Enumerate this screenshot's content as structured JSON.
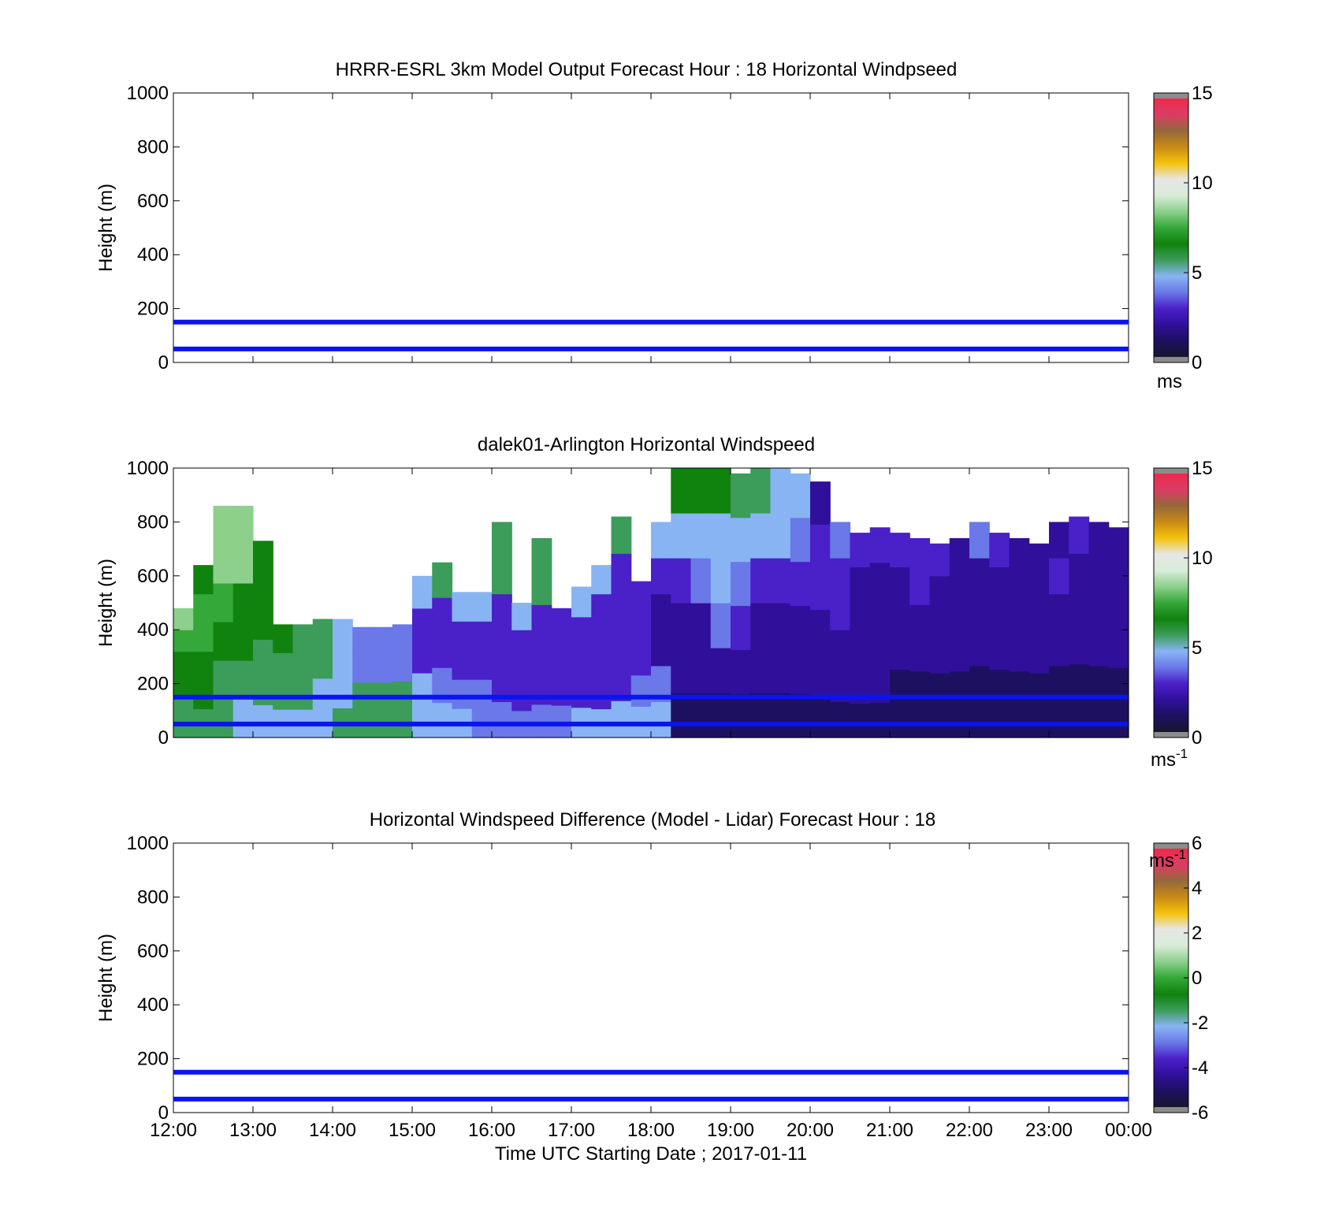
{
  "colors": {
    "ref_line": "#0a14f0",
    "missing": "#8c8c8c",
    "speed_scale": [
      "#16162e",
      "#1e1060",
      "#30109a",
      "#4a20c8",
      "#6a78e8",
      "#88b4f4",
      "#3c9c5a",
      "#10820e",
      "#34a838",
      "#8cd08c",
      "#d8ecd8",
      "#e6e6e6",
      "#f4c20c",
      "#c88a14",
      "#94683c",
      "#dc3c64",
      "#ee2a4a"
    ],
    "diff_scale": [
      "#16162e",
      "#1e1060",
      "#30109a",
      "#4a20c8",
      "#6a78e8",
      "#88b4f4",
      "#3c9c5a",
      "#10820e",
      "#34a838",
      "#8cd08c",
      "#d8ecd8",
      "#e6e6e6",
      "#f4c20c",
      "#c88a14",
      "#94683c",
      "#dc3c64",
      "#ee2a4a"
    ]
  },
  "chart_data": [
    {
      "id": "model",
      "type": "heatmap",
      "title": "HRRR-ESRL 3km Model Output   Forecast Hour : 18 Horizontal Windpseed",
      "ylabel": "Height (m)",
      "ylim": [
        0,
        1000
      ],
      "yticks": [
        "0",
        "200",
        "400",
        "600",
        "800",
        "1000"
      ],
      "ytick_values": [
        0,
        200,
        400,
        600,
        800,
        1000
      ],
      "x_range": [
        "12:00",
        "00:00"
      ],
      "reference_lines_m": [
        50,
        150
      ],
      "colorbar": {
        "range": [
          0,
          15
        ],
        "ticks": [
          "0",
          "5",
          "10",
          "15"
        ],
        "tick_values": [
          0,
          5,
          10,
          15
        ],
        "unit_text": "ms",
        "unit_sup": ""
      },
      "cells": []
    },
    {
      "id": "lidar",
      "type": "heatmap",
      "title": "dalek01-Arlington  Horizontal Windspeed",
      "ylabel": "Height (m)",
      "ylim": [
        0,
        1000
      ],
      "yticks": [
        "0",
        "200",
        "400",
        "600",
        "800",
        "1000"
      ],
      "ytick_values": [
        0,
        200,
        400,
        600,
        800,
        1000
      ],
      "x_range": [
        "12:00",
        "00:00"
      ],
      "reference_lines_m": [
        50,
        150
      ],
      "colorbar": {
        "range": [
          0,
          15
        ],
        "ticks": [
          "0",
          "5",
          "10",
          "15"
        ],
        "tick_values": [
          0,
          5,
          10,
          15
        ],
        "unit_text": "ms",
        "unit_sup": "-1"
      },
      "time_columns_hours_after_start": [
        0,
        0.25,
        0.5,
        0.75,
        1.0,
        1.25,
        1.5,
        1.75,
        2.0,
        2.25,
        2.5,
        2.75,
        3.0,
        3.25,
        3.5,
        3.75,
        4.0,
        4.25,
        4.5,
        4.75,
        5.0,
        5.25,
        5.5,
        5.75,
        6.0,
        6.25,
        6.5,
        6.75,
        7.0,
        7.25,
        7.5,
        7.75,
        8.0,
        8.25,
        8.5,
        8.75,
        9.0,
        9.25,
        9.5,
        9.75,
        10.0,
        10.25,
        10.5,
        10.75,
        11.0,
        11.25,
        11.5,
        11.75
      ],
      "column_profiles": [
        {
          "top": 480,
          "speeds": [
            6,
            6,
            6.5,
            7,
            7.5,
            8.5
          ]
        },
        {
          "top": 640,
          "speeds": [
            6,
            6.5,
            7,
            7.5,
            7.5,
            7
          ]
        },
        {
          "top": 860,
          "speeds": [
            5.5,
            6,
            7,
            7.5,
            8,
            8
          ]
        },
        {
          "top": 860,
          "speeds": [
            5,
            6,
            6.5,
            7,
            8.5,
            8
          ]
        },
        {
          "top": 730,
          "speeds": [
            5,
            5.5,
            6,
            6.5,
            7,
            7
          ]
        },
        {
          "top": 420,
          "speeds": [
            5,
            5.5,
            6,
            6.5
          ]
        },
        {
          "top": 420,
          "speeds": [
            5,
            5.5,
            6,
            6
          ]
        },
        {
          "top": 440,
          "speeds": [
            5,
            5,
            5.5,
            5.5
          ]
        },
        {
          "top": 440,
          "speeds": [
            5.5,
            5,
            4.5,
            5
          ]
        },
        {
          "top": 410,
          "speeds": [
            6,
            5.5,
            3.5,
            4
          ]
        },
        {
          "top": 410,
          "speeds": [
            6,
            5.5,
            3.5,
            3.5
          ]
        },
        {
          "top": 420,
          "speeds": [
            6,
            5.5,
            4,
            3.5
          ]
        },
        {
          "top": 600,
          "speeds": [
            5,
            4.5,
            2.5,
            3,
            5
          ]
        },
        {
          "top": 650,
          "speeds": [
            5,
            4,
            2.5,
            3,
            5.5
          ]
        },
        {
          "top": 540,
          "speeds": [
            4.5,
            4,
            2.5,
            2.5,
            5
          ]
        },
        {
          "top": 540,
          "speeds": [
            4,
            3.5,
            2.5,
            2.5,
            5
          ]
        },
        {
          "top": 800,
          "speeds": [
            3.5,
            3,
            2.5,
            3,
            5.5,
            6
          ]
        },
        {
          "top": 500,
          "speeds": [
            3.5,
            3,
            2.5,
            2.5,
            5
          ]
        },
        {
          "top": 740,
          "speeds": [
            3.5,
            3,
            2.5,
            2.5,
            5.5,
            5.5
          ]
        },
        {
          "top": 480,
          "speeds": [
            4,
            3,
            2.5,
            2.5
          ]
        },
        {
          "top": 560,
          "speeds": [
            4.5,
            3,
            2.5,
            2.5,
            5
          ]
        },
        {
          "top": 640,
          "speeds": [
            4.5,
            3,
            2.5,
            2.5,
            3,
            5
          ]
        },
        {
          "top": 820,
          "speeds": [
            5,
            3,
            2.5,
            2.5,
            3,
            5.5
          ]
        },
        {
          "top": 580,
          "speeds": [
            5,
            3.5,
            2.5,
            2.5,
            3
          ]
        },
        {
          "top": 800,
          "speeds": [
            4.5,
            3.5,
            2,
            2,
            2.5,
            5
          ]
        },
        {
          "top": 1000,
          "speeds": [
            1,
            1.5,
            2,
            2.5,
            5,
            6.5
          ]
        },
        {
          "top": 1000,
          "speeds": [
            1,
            1.5,
            2,
            3.5,
            5,
            7
          ]
        },
        {
          "top": 1000,
          "speeds": [
            0.5,
            1.5,
            3.5,
            4.5,
            5,
            6.5
          ]
        },
        {
          "top": 980,
          "speeds": [
            1,
            1.5,
            2.5,
            4,
            5,
            5.5
          ]
        },
        {
          "top": 1000,
          "speeds": [
            1,
            1.5,
            2,
            2.5,
            5,
            5.5
          ]
        },
        {
          "top": 1000,
          "speeds": [
            0.5,
            1.5,
            2,
            2.5,
            4.5,
            5
          ]
        },
        {
          "top": 980,
          "speeds": [
            1,
            1.5,
            2,
            2.5,
            3.5,
            4.5
          ]
        },
        {
          "top": 950,
          "speeds": [
            1,
            1.5,
            2,
            2.5,
            2.5,
            2
          ]
        },
        {
          "top": 800,
          "speeds": [
            1,
            1.5,
            2,
            2.5,
            3,
            3.5
          ]
        },
        {
          "top": 760,
          "speeds": [
            1,
            1.5,
            1.5,
            2,
            2,
            2.5
          ]
        },
        {
          "top": 780,
          "speeds": [
            1,
            1.5,
            1.5,
            2,
            2,
            2.5
          ]
        },
        {
          "top": 760,
          "speeds": [
            1,
            1,
            1.5,
            2,
            2,
            2.5
          ]
        },
        {
          "top": 740,
          "speeds": [
            1,
            1,
            1.5,
            2,
            2.5,
            2.5
          ]
        },
        {
          "top": 720,
          "speeds": [
            1,
            1,
            1.5,
            2,
            2,
            2.5
          ]
        },
        {
          "top": 740,
          "speeds": [
            1,
            1,
            1.5,
            2,
            2,
            2
          ]
        },
        {
          "top": 800,
          "speeds": [
            1,
            1,
            1.5,
            2,
            2,
            3.5
          ]
        },
        {
          "top": 760,
          "speeds": [
            1,
            1,
            1.5,
            1.5,
            2,
            2.5
          ]
        },
        {
          "top": 740,
          "speeds": [
            1,
            1,
            1.5,
            1.5,
            2,
            2
          ]
        },
        {
          "top": 720,
          "speeds": [
            1,
            1,
            1.5,
            2,
            2,
            2
          ]
        },
        {
          "top": 800,
          "speeds": [
            1,
            1,
            1.5,
            2,
            2.5,
            2
          ]
        },
        {
          "top": 820,
          "speeds": [
            1,
            1,
            1.5,
            1.5,
            2,
            2.5
          ]
        },
        {
          "top": 800,
          "speeds": [
            1,
            1,
            1.5,
            1.5,
            2,
            2
          ]
        },
        {
          "top": 780,
          "speeds": [
            1,
            1,
            1.5,
            1.5,
            2,
            2
          ]
        }
      ]
    },
    {
      "id": "difference",
      "type": "heatmap",
      "title": "Horizontal Windspeed Difference (Model - Lidar) Forecast Hour : 18",
      "ylabel": "Height (m)",
      "xlabel": "Time UTC  Starting Date ; 2017-01-11",
      "ylim": [
        0,
        1000
      ],
      "yticks": [
        "0",
        "200",
        "400",
        "600",
        "800",
        "1000"
      ],
      "ytick_values": [
        0,
        200,
        400,
        600,
        800,
        1000
      ],
      "xticks": [
        "12:00",
        "13:00",
        "14:00",
        "15:00",
        "16:00",
        "17:00",
        "18:00",
        "19:00",
        "20:00",
        "21:00",
        "22:00",
        "23:00",
        "00:00"
      ],
      "reference_lines_m": [
        50,
        150
      ],
      "colorbar": {
        "range": [
          -6,
          6
        ],
        "ticks": [
          "-6",
          "-4",
          "-2",
          "0",
          "2",
          "4",
          "6"
        ],
        "tick_values": [
          -6,
          -4,
          -2,
          0,
          2,
          4,
          6
        ],
        "unit_text": "ms",
        "unit_sup": "-1"
      },
      "cells": []
    }
  ]
}
